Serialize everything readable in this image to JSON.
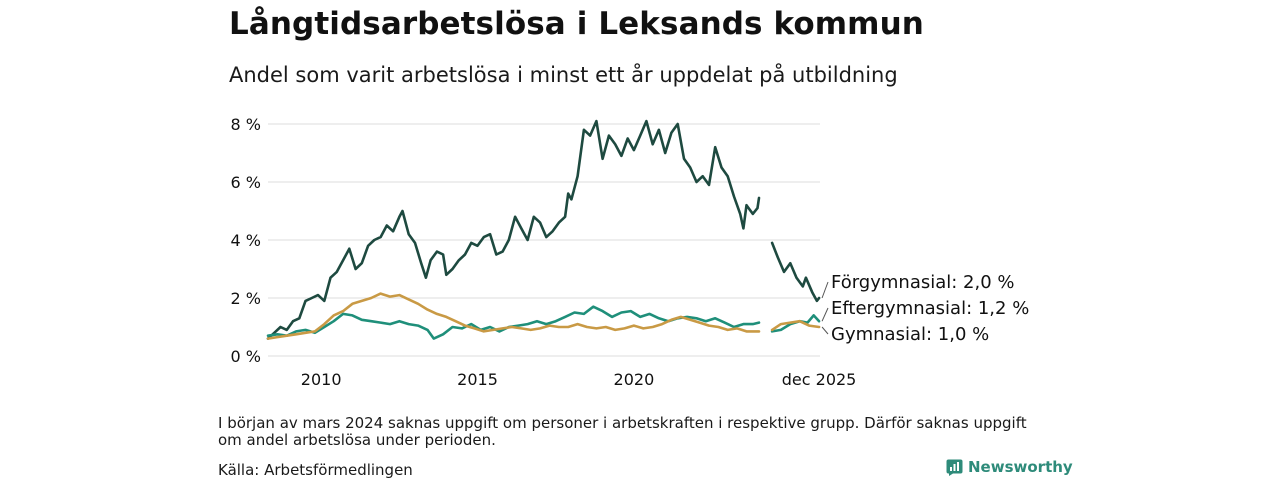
{
  "header": {
    "title": "Långtidsarbetslösa i Leksands kommun",
    "subtitle": "Andel som varit arbetslösa i minst ett år uppdelat på utbildning"
  },
  "footer": {
    "note": "I början av mars 2024 saknas uppgift om personer i arbetskraften i respektive grupp. Därför saknas uppgift om andel arbetslösa under perioden.",
    "source": "Källa: Arbetsförmedlingen",
    "brand": "Newsworthy"
  },
  "colors": {
    "forgymnasial": "#1e4a40",
    "eftergymnasial": "#1f8f7a",
    "gymnasial": "#c99a45",
    "grid": "#dddddd",
    "brand": "#2e8b7a"
  },
  "chart_data": {
    "type": "line",
    "title": "Långtidsarbetslösa i Leksands kommun",
    "subtitle": "Andel som varit arbetslösa i minst ett år uppdelat på utbildning",
    "xlabel": "",
    "ylabel": "",
    "x_range": [
      2008.3,
      2025.95
    ],
    "ylim": [
      0,
      8
    ],
    "y_ticks": [
      0,
      2,
      4,
      6,
      8
    ],
    "y_tick_labels": [
      "0 %",
      "2 %",
      "4 %",
      "6 %",
      "8 %"
    ],
    "x_ticks": [
      2010,
      2015,
      2020,
      2025.92
    ],
    "x_tick_labels": [
      "2010",
      "2015",
      "2020",
      "dec 2025"
    ],
    "grid": true,
    "gap": [
      2024.0,
      2024.42
    ],
    "series": [
      {
        "name": "Förgymnasial",
        "end_label": "Förgymnasial: 2,0 %",
        "color_key": "forgymnasial",
        "points": [
          [
            2008.3,
            0.6
          ],
          [
            2008.5,
            0.8
          ],
          [
            2008.7,
            1.0
          ],
          [
            2008.9,
            0.9
          ],
          [
            2009.1,
            1.2
          ],
          [
            2009.3,
            1.3
          ],
          [
            2009.5,
            1.9
          ],
          [
            2009.7,
            2.0
          ],
          [
            2009.9,
            2.1
          ],
          [
            2010.1,
            1.9
          ],
          [
            2010.3,
            2.7
          ],
          [
            2010.5,
            2.9
          ],
          [
            2010.7,
            3.3
          ],
          [
            2010.9,
            3.7
          ],
          [
            2011.1,
            3.0
          ],
          [
            2011.3,
            3.2
          ],
          [
            2011.5,
            3.8
          ],
          [
            2011.7,
            4.0
          ],
          [
            2011.9,
            4.1
          ],
          [
            2012.1,
            4.5
          ],
          [
            2012.3,
            4.3
          ],
          [
            2012.5,
            4.8
          ],
          [
            2012.6,
            5.0
          ],
          [
            2012.8,
            4.2
          ],
          [
            2013.0,
            3.9
          ],
          [
            2013.2,
            3.2
          ],
          [
            2013.35,
            2.7
          ],
          [
            2013.5,
            3.3
          ],
          [
            2013.7,
            3.6
          ],
          [
            2013.9,
            3.5
          ],
          [
            2014.0,
            2.8
          ],
          [
            2014.2,
            3.0
          ],
          [
            2014.4,
            3.3
          ],
          [
            2014.6,
            3.5
          ],
          [
            2014.8,
            3.9
          ],
          [
            2015.0,
            3.8
          ],
          [
            2015.2,
            4.1
          ],
          [
            2015.4,
            4.2
          ],
          [
            2015.6,
            3.5
          ],
          [
            2015.8,
            3.6
          ],
          [
            2016.0,
            4.0
          ],
          [
            2016.2,
            4.8
          ],
          [
            2016.4,
            4.4
          ],
          [
            2016.6,
            4.0
          ],
          [
            2016.8,
            4.8
          ],
          [
            2017.0,
            4.6
          ],
          [
            2017.2,
            4.1
          ],
          [
            2017.4,
            4.3
          ],
          [
            2017.6,
            4.6
          ],
          [
            2017.8,
            4.8
          ],
          [
            2017.9,
            5.6
          ],
          [
            2018.0,
            5.4
          ],
          [
            2018.2,
            6.2
          ],
          [
            2018.4,
            7.8
          ],
          [
            2018.6,
            7.6
          ],
          [
            2018.8,
            8.1
          ],
          [
            2019.0,
            6.8
          ],
          [
            2019.2,
            7.6
          ],
          [
            2019.4,
            7.3
          ],
          [
            2019.6,
            6.9
          ],
          [
            2019.8,
            7.5
          ],
          [
            2020.0,
            7.1
          ],
          [
            2020.2,
            7.6
          ],
          [
            2020.4,
            8.1
          ],
          [
            2020.6,
            7.3
          ],
          [
            2020.8,
            7.8
          ],
          [
            2021.0,
            7.0
          ],
          [
            2021.2,
            7.7
          ],
          [
            2021.4,
            8.0
          ],
          [
            2021.6,
            6.8
          ],
          [
            2021.8,
            6.5
          ],
          [
            2022.0,
            6.0
          ],
          [
            2022.2,
            6.2
          ],
          [
            2022.4,
            5.9
          ],
          [
            2022.6,
            7.2
          ],
          [
            2022.8,
            6.5
          ],
          [
            2023.0,
            6.2
          ],
          [
            2023.2,
            5.5
          ],
          [
            2023.4,
            4.9
          ],
          [
            2023.5,
            4.4
          ],
          [
            2023.6,
            5.2
          ],
          [
            2023.8,
            4.9
          ],
          [
            2023.95,
            5.1
          ],
          [
            2024.0,
            5.45
          ],
          [
            2024.42,
            3.9
          ],
          [
            2024.6,
            3.4
          ],
          [
            2024.8,
            2.9
          ],
          [
            2025.0,
            3.2
          ],
          [
            2025.2,
            2.7
          ],
          [
            2025.4,
            2.4
          ],
          [
            2025.5,
            2.7
          ],
          [
            2025.7,
            2.2
          ],
          [
            2025.85,
            1.9
          ],
          [
            2025.92,
            2.0
          ]
        ]
      },
      {
        "name": "Eftergymnasial",
        "end_label": "Eftergymnasial: 1,2 %",
        "color_key": "eftergymnasial",
        "points": [
          [
            2008.3,
            0.7
          ],
          [
            2008.6,
            0.75
          ],
          [
            2008.9,
            0.7
          ],
          [
            2009.2,
            0.85
          ],
          [
            2009.5,
            0.9
          ],
          [
            2009.8,
            0.8
          ],
          [
            2010.1,
            1.0
          ],
          [
            2010.4,
            1.2
          ],
          [
            2010.7,
            1.45
          ],
          [
            2011.0,
            1.4
          ],
          [
            2011.3,
            1.25
          ],
          [
            2011.6,
            1.2
          ],
          [
            2011.9,
            1.15
          ],
          [
            2012.2,
            1.1
          ],
          [
            2012.5,
            1.2
          ],
          [
            2012.8,
            1.1
          ],
          [
            2013.1,
            1.05
          ],
          [
            2013.4,
            0.9
          ],
          [
            2013.6,
            0.6
          ],
          [
            2013.9,
            0.75
          ],
          [
            2014.2,
            1.0
          ],
          [
            2014.5,
            0.95
          ],
          [
            2014.8,
            1.1
          ],
          [
            2015.1,
            0.9
          ],
          [
            2015.4,
            1.0
          ],
          [
            2015.7,
            0.85
          ],
          [
            2016.0,
            1.0
          ],
          [
            2016.3,
            1.05
          ],
          [
            2016.6,
            1.1
          ],
          [
            2016.9,
            1.2
          ],
          [
            2017.2,
            1.1
          ],
          [
            2017.5,
            1.2
          ],
          [
            2017.8,
            1.35
          ],
          [
            2018.1,
            1.5
          ],
          [
            2018.4,
            1.45
          ],
          [
            2018.7,
            1.7
          ],
          [
            2019.0,
            1.55
          ],
          [
            2019.3,
            1.35
          ],
          [
            2019.6,
            1.5
          ],
          [
            2019.9,
            1.55
          ],
          [
            2020.2,
            1.35
          ],
          [
            2020.5,
            1.45
          ],
          [
            2020.8,
            1.3
          ],
          [
            2021.1,
            1.2
          ],
          [
            2021.4,
            1.3
          ],
          [
            2021.7,
            1.35
          ],
          [
            2022.0,
            1.3
          ],
          [
            2022.3,
            1.2
          ],
          [
            2022.6,
            1.3
          ],
          [
            2022.9,
            1.15
          ],
          [
            2023.2,
            1.0
          ],
          [
            2023.5,
            1.1
          ],
          [
            2023.8,
            1.1
          ],
          [
            2024.0,
            1.15
          ],
          [
            2024.42,
            0.85
          ],
          [
            2024.7,
            0.9
          ],
          [
            2025.0,
            1.1
          ],
          [
            2025.3,
            1.2
          ],
          [
            2025.55,
            1.15
          ],
          [
            2025.75,
            1.4
          ],
          [
            2025.92,
            1.2
          ]
        ]
      },
      {
        "name": "Gymnasial",
        "end_label": "Gymnasial: 1,0 %",
        "color_key": "gymnasial",
        "points": [
          [
            2008.3,
            0.6
          ],
          [
            2008.6,
            0.65
          ],
          [
            2008.9,
            0.7
          ],
          [
            2009.2,
            0.75
          ],
          [
            2009.5,
            0.8
          ],
          [
            2009.8,
            0.85
          ],
          [
            2010.1,
            1.1
          ],
          [
            2010.4,
            1.4
          ],
          [
            2010.7,
            1.55
          ],
          [
            2011.0,
            1.8
          ],
          [
            2011.3,
            1.9
          ],
          [
            2011.6,
            2.0
          ],
          [
            2011.9,
            2.15
          ],
          [
            2012.2,
            2.05
          ],
          [
            2012.5,
            2.1
          ],
          [
            2012.8,
            1.95
          ],
          [
            2013.1,
            1.8
          ],
          [
            2013.4,
            1.6
          ],
          [
            2013.7,
            1.45
          ],
          [
            2014.0,
            1.35
          ],
          [
            2014.3,
            1.2
          ],
          [
            2014.6,
            1.05
          ],
          [
            2014.9,
            0.95
          ],
          [
            2015.2,
            0.85
          ],
          [
            2015.5,
            0.9
          ],
          [
            2015.8,
            0.95
          ],
          [
            2016.1,
            1.0
          ],
          [
            2016.4,
            0.95
          ],
          [
            2016.7,
            0.9
          ],
          [
            2017.0,
            0.95
          ],
          [
            2017.3,
            1.05
          ],
          [
            2017.6,
            1.0
          ],
          [
            2017.9,
            1.0
          ],
          [
            2018.2,
            1.1
          ],
          [
            2018.5,
            1.0
          ],
          [
            2018.8,
            0.95
          ],
          [
            2019.1,
            1.0
          ],
          [
            2019.4,
            0.9
          ],
          [
            2019.7,
            0.95
          ],
          [
            2020.0,
            1.05
          ],
          [
            2020.3,
            0.95
          ],
          [
            2020.6,
            1.0
          ],
          [
            2020.9,
            1.1
          ],
          [
            2021.2,
            1.25
          ],
          [
            2021.5,
            1.35
          ],
          [
            2021.8,
            1.25
          ],
          [
            2022.1,
            1.15
          ],
          [
            2022.4,
            1.05
          ],
          [
            2022.7,
            1.0
          ],
          [
            2023.0,
            0.9
          ],
          [
            2023.3,
            0.95
          ],
          [
            2023.6,
            0.85
          ],
          [
            2023.9,
            0.85
          ],
          [
            2024.0,
            0.85
          ],
          [
            2024.42,
            0.9
          ],
          [
            2024.7,
            1.1
          ],
          [
            2025.0,
            1.15
          ],
          [
            2025.3,
            1.2
          ],
          [
            2025.6,
            1.05
          ],
          [
            2025.92,
            1.0
          ]
        ]
      }
    ]
  }
}
